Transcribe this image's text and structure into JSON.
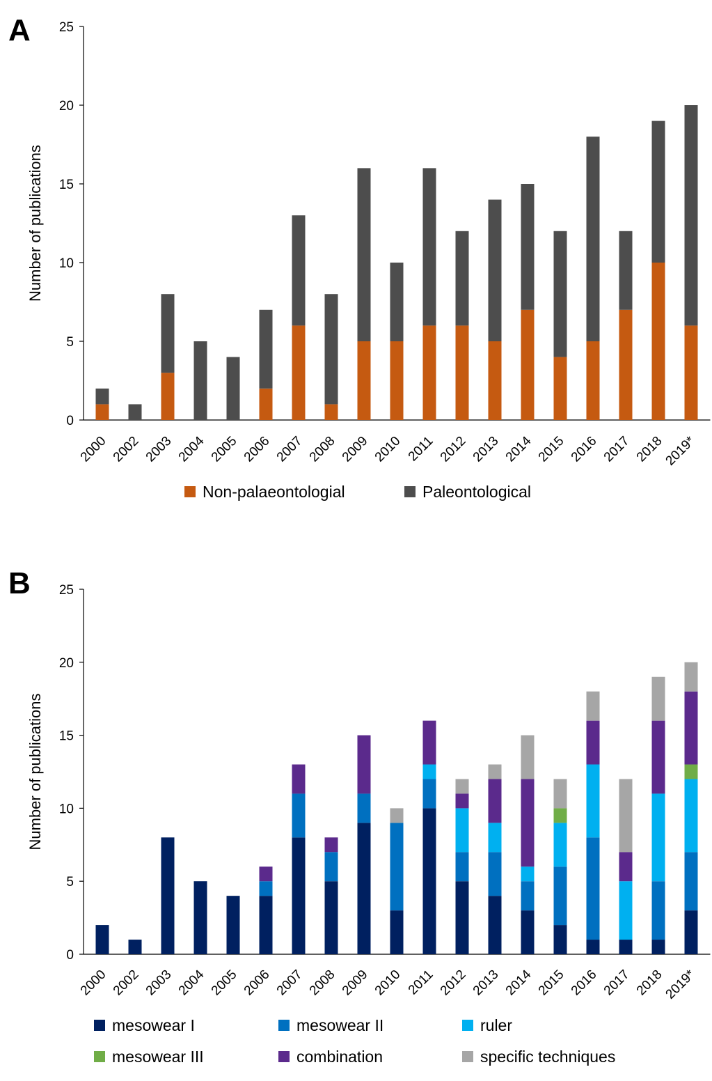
{
  "chart_data": [
    {
      "panel_label": "A",
      "type": "bar",
      "stacked": true,
      "categories": [
        "2000",
        "2002",
        "2003",
        "2004",
        "2005",
        "2006",
        "2007",
        "2008",
        "2009",
        "2010",
        "2011",
        "2012",
        "2013",
        "2014",
        "2015",
        "2016",
        "2017",
        "2018",
        "2019*"
      ],
      "ylabel": "Number of publications",
      "ylim": [
        0,
        25
      ],
      "yticks": [
        0,
        5,
        10,
        15,
        20,
        25
      ],
      "grid": false,
      "legend_placement": "bottom",
      "series": [
        {
          "name": "Non-palaeontologial",
          "color": "#C55A11",
          "values": [
            1,
            0,
            3,
            0,
            0,
            2,
            6,
            1,
            5,
            5,
            6,
            6,
            5,
            7,
            4,
            5,
            7,
            10,
            6
          ]
        },
        {
          "name": "Paleontological",
          "color": "#4D4D4D",
          "values": [
            1,
            1,
            5,
            5,
            4,
            5,
            7,
            7,
            11,
            5,
            10,
            6,
            9,
            8,
            8,
            13,
            5,
            9,
            14
          ]
        }
      ]
    },
    {
      "panel_label": "B",
      "type": "bar",
      "stacked": true,
      "categories": [
        "2000",
        "2002",
        "2003",
        "2004",
        "2005",
        "2006",
        "2007",
        "2008",
        "2009",
        "2010",
        "2011",
        "2012",
        "2013",
        "2014",
        "2015",
        "2016",
        "2017",
        "2018",
        "2019*"
      ],
      "ylabel": "Number of publications",
      "ylim": [
        0,
        25
      ],
      "yticks": [
        0,
        5,
        10,
        15,
        20,
        25
      ],
      "grid": false,
      "legend_placement": "bottom",
      "series": [
        {
          "name": "mesowear I",
          "color": "#002060",
          "values": [
            2,
            1,
            8,
            5,
            4,
            4,
            8,
            5,
            9,
            3,
            10,
            5,
            4,
            3,
            2,
            1,
            1,
            1,
            3
          ]
        },
        {
          "name": "mesowear II",
          "color": "#0070C0",
          "values": [
            0,
            0,
            0,
            0,
            0,
            1,
            3,
            2,
            2,
            6,
            2,
            2,
            3,
            2,
            4,
            7,
            0,
            4,
            4
          ]
        },
        {
          "name": "ruler",
          "color": "#00B0F0",
          "values": [
            0,
            0,
            0,
            0,
            0,
            0,
            0,
            0,
            0,
            0,
            1,
            3,
            2,
            1,
            3,
            5,
            4,
            6,
            5
          ]
        },
        {
          "name": "mesowear III",
          "color": "#70AD47",
          "values": [
            0,
            0,
            0,
            0,
            0,
            0,
            0,
            0,
            0,
            0,
            0,
            0,
            0,
            0,
            1,
            0,
            0,
            0,
            1
          ]
        },
        {
          "name": "combination",
          "color": "#5B2A8C",
          "values": [
            0,
            0,
            0,
            0,
            0,
            1,
            2,
            1,
            4,
            0,
            3,
            1,
            3,
            6,
            0,
            3,
            2,
            5,
            5
          ]
        },
        {
          "name": "specific techniques",
          "color": "#A6A6A6",
          "values": [
            0,
            0,
            0,
            0,
            0,
            0,
            0,
            0,
            0,
            1,
            0,
            1,
            1,
            3,
            2,
            2,
            5,
            3,
            2
          ]
        }
      ]
    }
  ]
}
